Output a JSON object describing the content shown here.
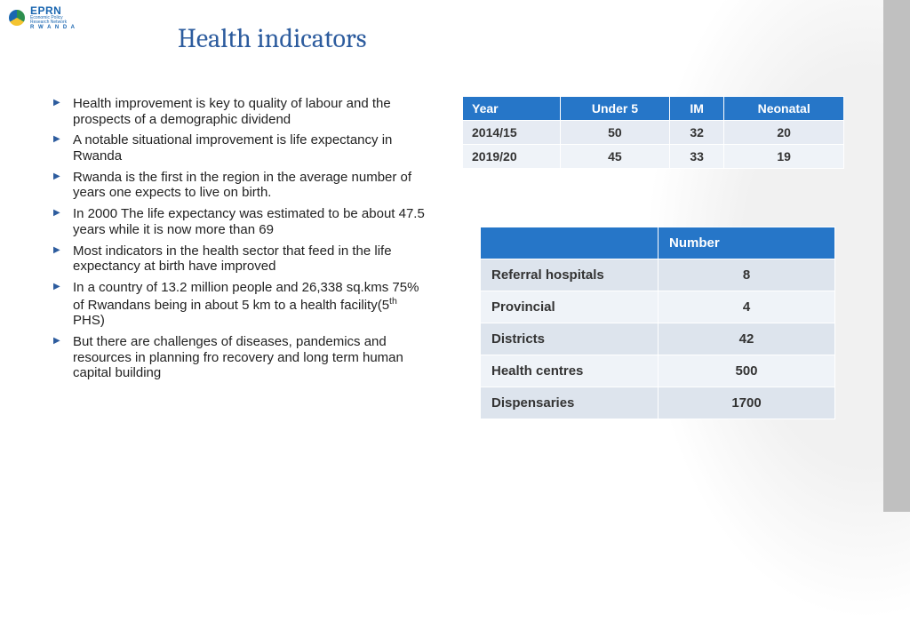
{
  "logo": {
    "name": "EPRN",
    "sub1": "Economic Policy",
    "sub2": "Research Network",
    "country": "R W A N D A"
  },
  "title": "Health indicators",
  "bullets": [
    "Health improvement is key to quality of labour and the prospects of a demographic dividend",
    "A notable situational improvement is life expectancy in Rwanda",
    "Rwanda is the first in the region in the average number of years one expects to live on birth.",
    "In 2000 The life expectancy was estimated to be about 47.5 years while it is now more than 69",
    "Most indicators in the health sector that feed in the life expectancy at birth  have improved",
    "In a country of 13.2 million people and 26,338 sq.kms 75% of Rwandans being in about 5 km to  a health facility(5th PHS)",
    "But there are challenges of diseases, pandemics and  resources  in planning fro recovery and long term  human capital building"
  ],
  "table1": {
    "columns": [
      "Year",
      "Under 5",
      "IM",
      "Neonatal"
    ],
    "rows": [
      [
        "2014/15",
        "50",
        "32",
        "20"
      ],
      [
        "2019/20",
        "45",
        "33",
        "19"
      ]
    ],
    "header_bg": "#2676c8",
    "header_color": "#ffffff",
    "row_bg_odd": "#e6ebf3",
    "row_bg_even": "#eff3f8"
  },
  "table2": {
    "columns": [
      "",
      "Number"
    ],
    "rows": [
      [
        "Referral hospitals",
        "8"
      ],
      [
        "Provincial",
        "4"
      ],
      [
        "Districts",
        "42"
      ],
      [
        "Health centres",
        "500"
      ],
      [
        "Dispensaries",
        "1700"
      ]
    ],
    "header_bg": "#2676c8",
    "header_color": "#ffffff",
    "row_bg_odd": "#dde4ed",
    "row_bg_even": "#eff3f8"
  },
  "colors": {
    "title": "#2d5c9e",
    "bullet_marker": "#2d5c9e",
    "decor_band": "#c0c0c0"
  }
}
